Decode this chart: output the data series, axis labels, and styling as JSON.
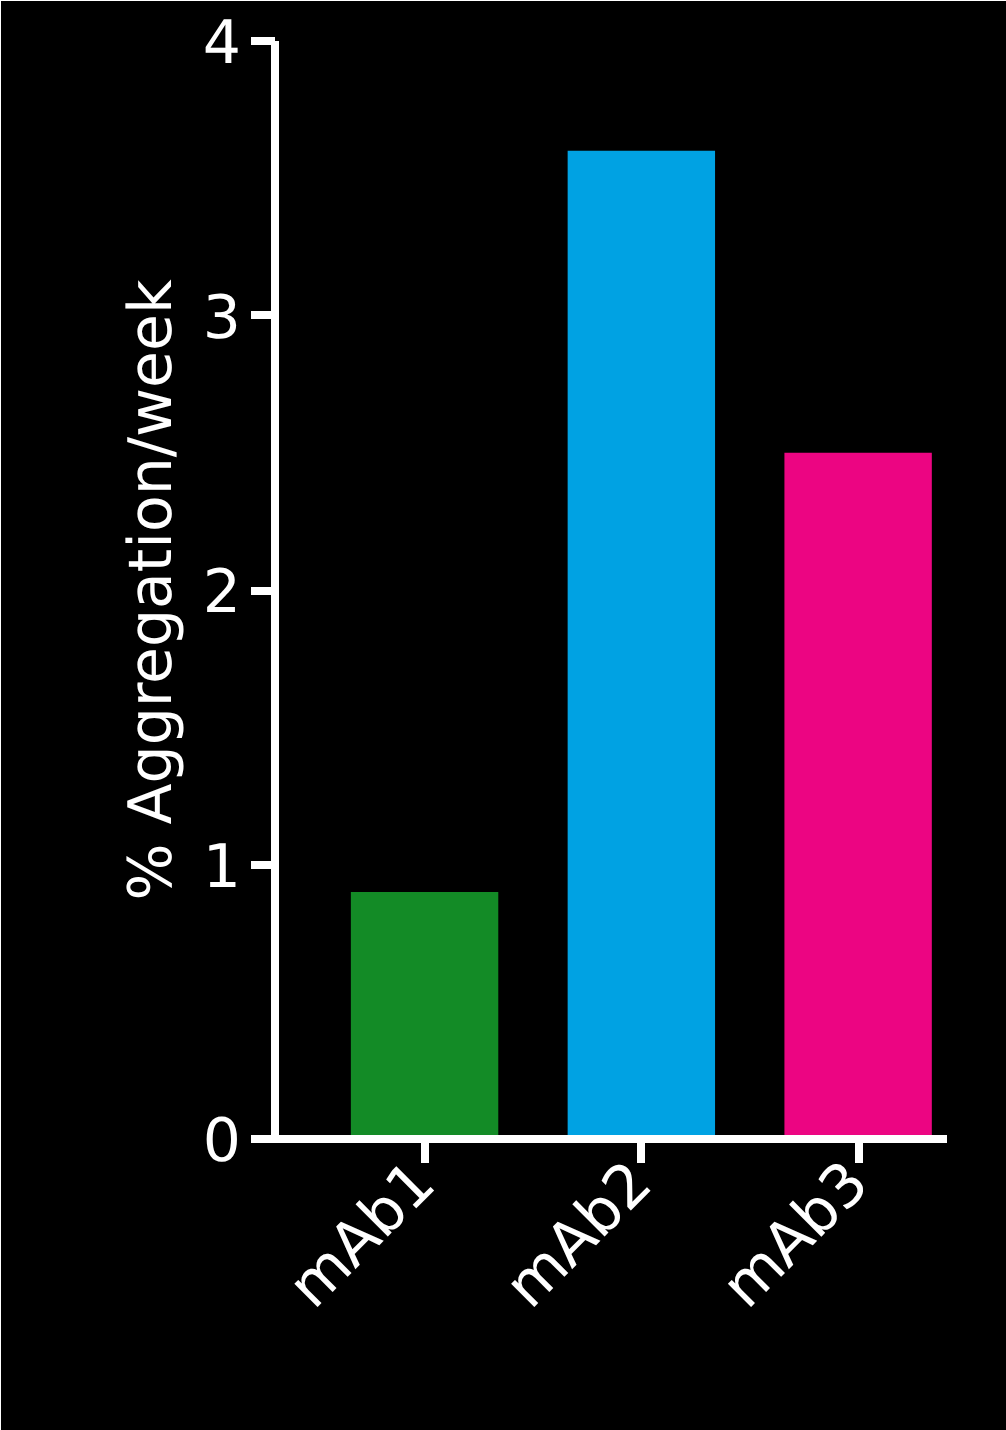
{
  "chart_data": {
    "type": "bar",
    "ylabel": "% Aggregation/week",
    "categories": [
      "mAb1",
      "mAb2",
      "mAb3"
    ],
    "values": [
      0.9,
      3.6,
      2.5
    ],
    "colors": [
      "#138b26",
      "#00a2e3",
      "#ec0582"
    ],
    "ylim": [
      0,
      4
    ],
    "yticks": [
      0,
      1,
      2,
      3,
      4
    ],
    "grid": false
  }
}
